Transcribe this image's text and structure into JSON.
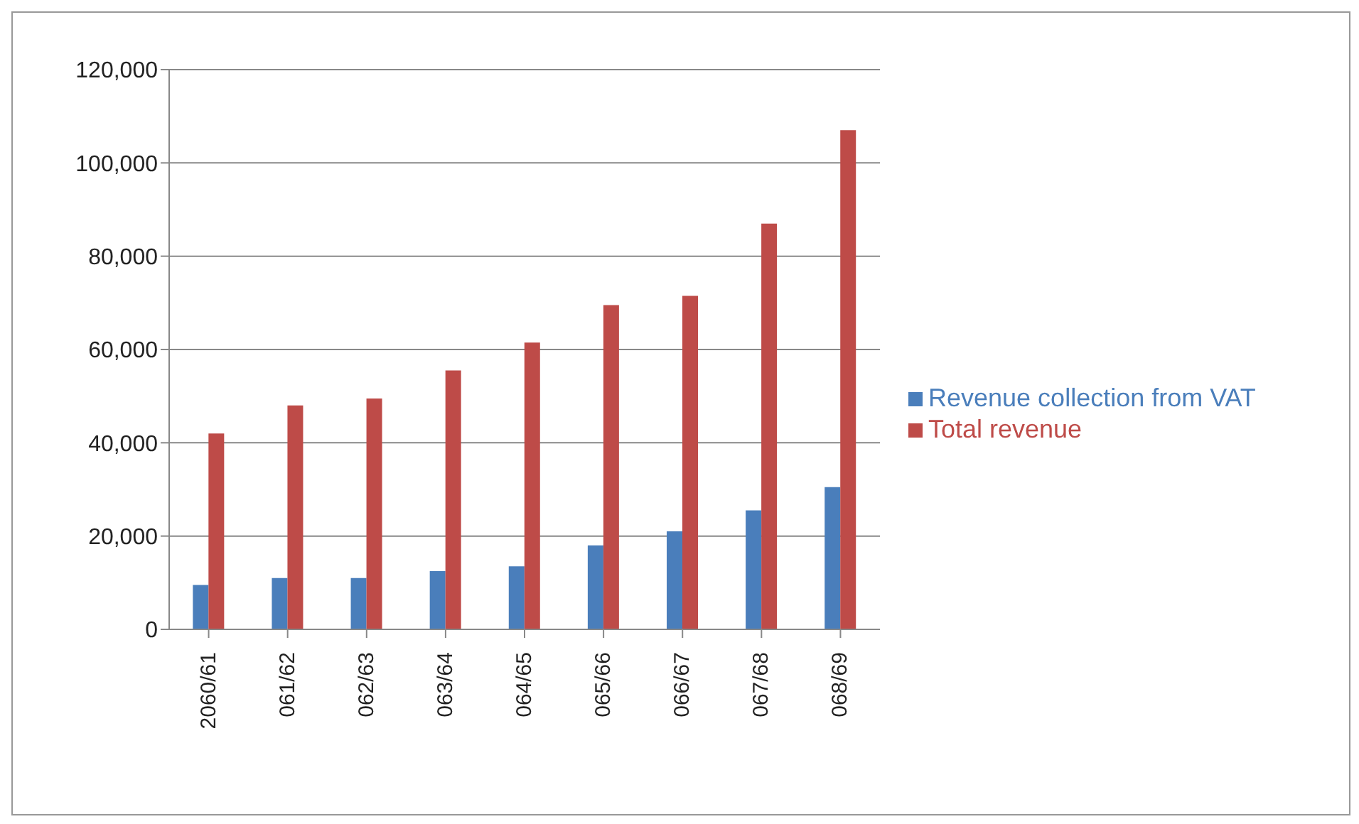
{
  "chart_data": {
    "type": "bar",
    "categories": [
      "2060/61",
      "061/62",
      "062/63",
      "063/64",
      "064/65",
      "065/66",
      "066/67",
      "067/68",
      "068/69"
    ],
    "series": [
      {
        "name": "Revenue collection from VAT",
        "color": "#4a7ebb",
        "values": [
          9500,
          11000,
          11000,
          12500,
          13500,
          18000,
          21000,
          25500,
          30500
        ]
      },
      {
        "name": "Total revenue",
        "color": "#be4b48",
        "values": [
          42000,
          48000,
          49500,
          55500,
          61500,
          69500,
          71500,
          87000,
          107000
        ]
      }
    ],
    "ylim": [
      0,
      120000
    ],
    "yticks": [
      {
        "value": 0,
        "label": "0"
      },
      {
        "value": 20000,
        "label": "20,000"
      },
      {
        "value": 40000,
        "label": "40,000"
      },
      {
        "value": 60000,
        "label": "60,000"
      },
      {
        "value": 80000,
        "label": "80,000"
      },
      {
        "value": 100000,
        "label": "100,000"
      },
      {
        "value": 120000,
        "label": "120,000"
      }
    ],
    "grid": "y",
    "legend": "right"
  }
}
